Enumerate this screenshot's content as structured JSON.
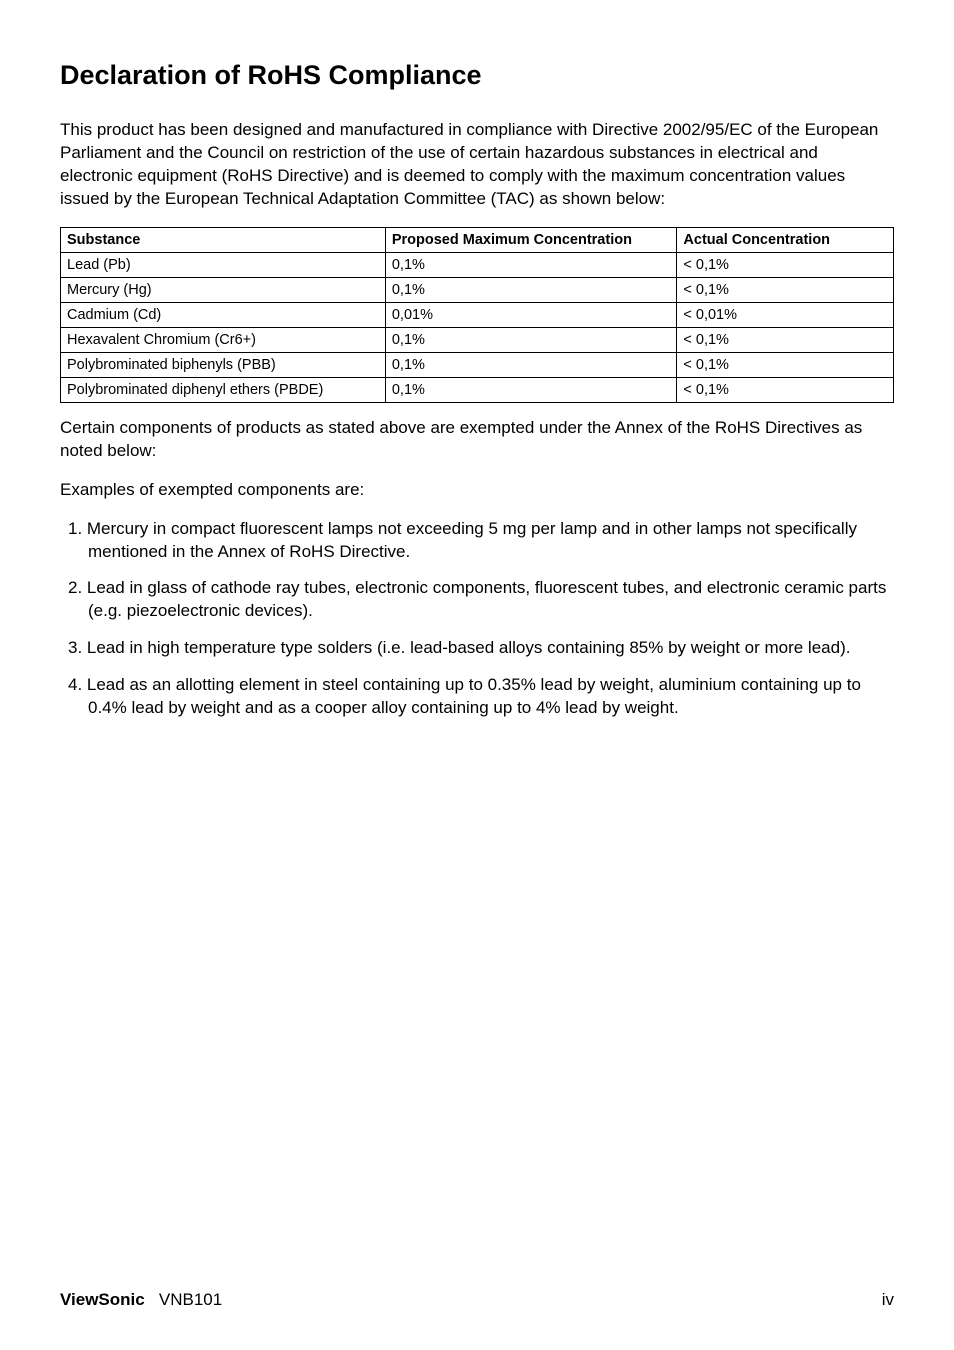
{
  "title": "Declaration of RoHS Compliance",
  "intro": "This product has been designed and manufactured in compliance with Directive 2002/95/EC of the European Parliament and the Council on restriction of the use of certain hazardous substances in electrical and electronic equipment (RoHS Directive) and is deemed to comply with the maximum concentration values issued by the European Technical Adaptation Committee (TAC) as shown below:",
  "table": {
    "headers": [
      "Substance",
      "Proposed Maximum Concentration",
      "Actual Concentration"
    ],
    "rows": [
      [
        "Lead (Pb)",
        "0,1%",
        "< 0,1%"
      ],
      [
        "Mercury (Hg)",
        "0,1%",
        "< 0,1%"
      ],
      [
        "Cadmium (Cd)",
        "0,01%",
        "< 0,01%"
      ],
      [
        "Hexavalent Chromium (Cr6+)",
        "0,1%",
        "< 0,1%"
      ],
      [
        "Polybrominated biphenyls (PBB)",
        "0,1%",
        "< 0,1%"
      ],
      [
        "Polybrominated diphenyl ethers (PBDE)",
        "0,1%",
        "< 0,1%"
      ]
    ]
  },
  "para2": "Certain components of products as stated above are exempted under the Annex of the RoHS Directives as noted below:",
  "para3": "Examples of exempted components are:",
  "items": [
    "1. Mercury in compact fluorescent lamps not exceeding 5 mg per lamp and in other lamps not specifically mentioned in the Annex of RoHS Directive.",
    "2. Lead in glass of cathode ray tubes, electronic components, fluorescent tubes, and electronic ceramic parts (e.g. piezoelectronic devices).",
    "3. Lead in high temperature type solders (i.e. lead-based alloys containing 85% by weight or more lead).",
    "4. Lead as an allotting element in steel containing up to 0.35% lead by weight, aluminium containing up to 0.4% lead by weight and as a cooper alloy containing up to 4% lead by weight."
  ],
  "footer": {
    "brand": "ViewSonic",
    "model": "VNB101",
    "page": "iv"
  },
  "styling": {
    "page_bg": "#ffffff",
    "text_color": "#000000",
    "border_color": "#000000",
    "title_fontsize": 27,
    "body_fontsize": 17,
    "table_fontsize": 14.5
  }
}
